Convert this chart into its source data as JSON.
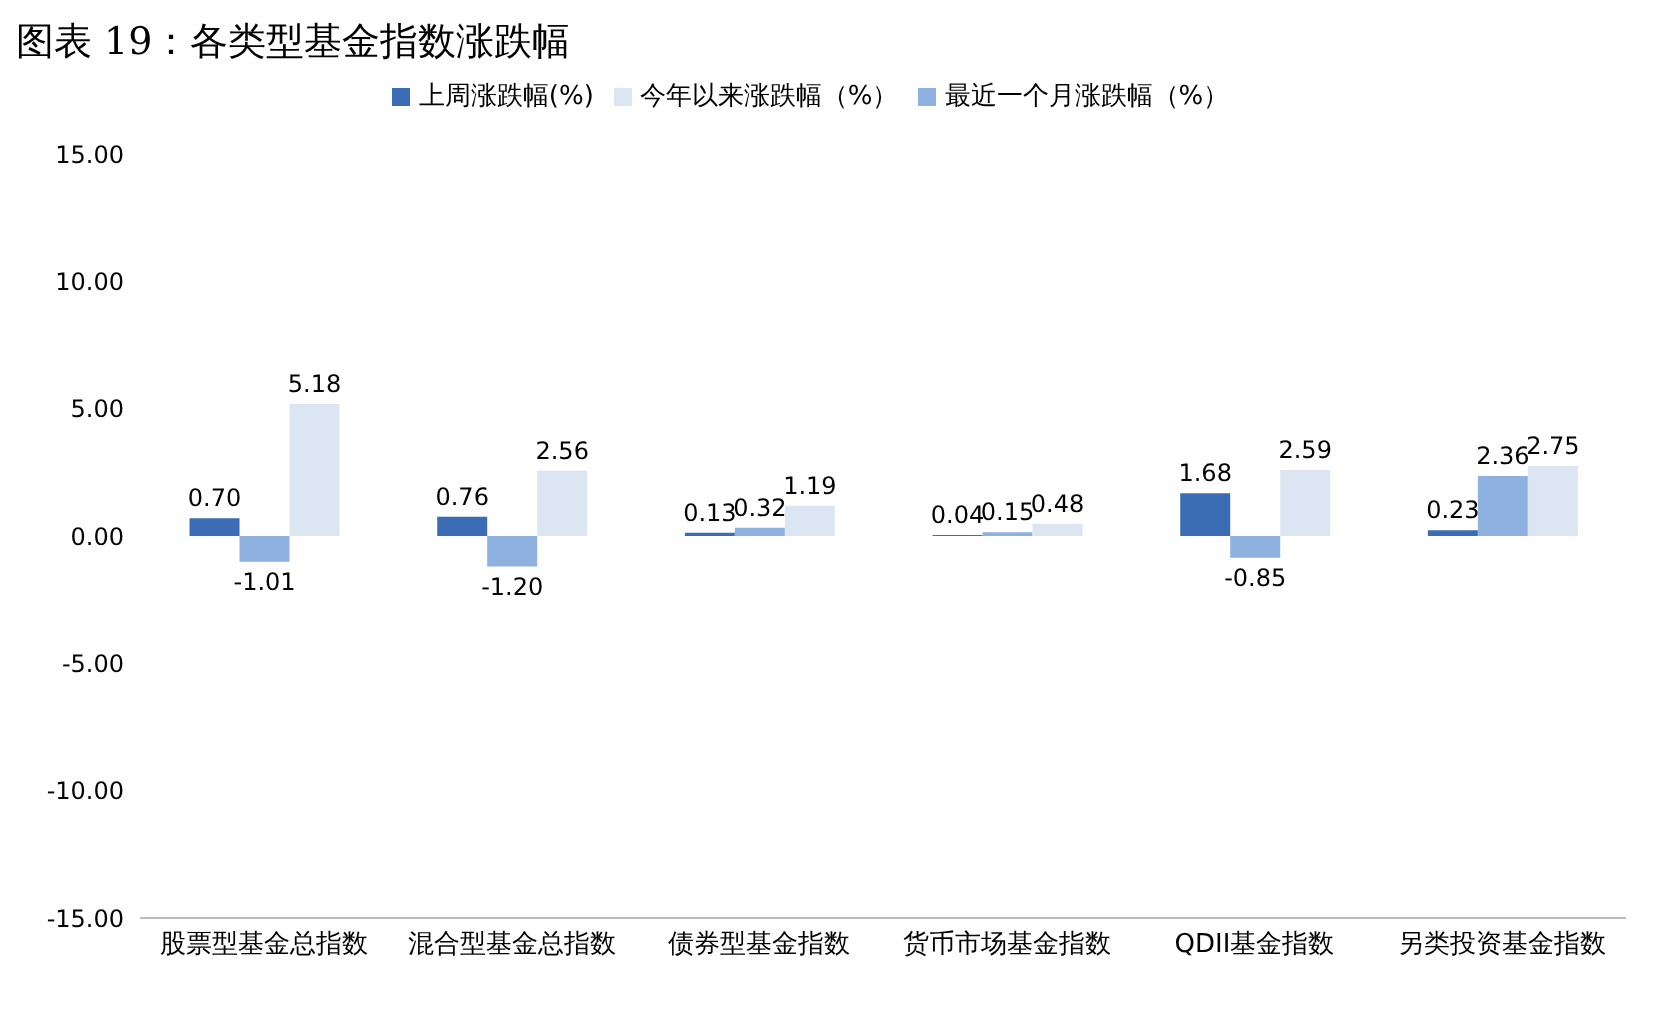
{
  "chart_data": {
    "type": "bar",
    "title": "图表 19：各类型基金指数涨跌幅",
    "categories": [
      "股票型基金总指数",
      "混合型基金总指数",
      "债券型基金指数",
      "货币市场基金指数",
      "QDII基金指数",
      "另类投资基金指数"
    ],
    "series": [
      {
        "name": "上周涨跌幅(%)",
        "color": "#3b6db5",
        "values": [
          0.7,
          0.76,
          0.13,
          0.04,
          1.68,
          0.23
        ],
        "value_labels": [
          "0.70",
          "0.76",
          "0.13",
          "0.04",
          "1.68",
          "0.23"
        ]
      },
      {
        "name": "最近一个月涨跌幅（%）",
        "color": "#8eb1e0",
        "values": [
          -1.01,
          -1.2,
          0.32,
          0.15,
          -0.85,
          2.36
        ],
        "value_labels": [
          "-1.01",
          "-1.20",
          "0.32",
          "0.15",
          "-0.85",
          "2.36"
        ]
      },
      {
        "name": "今年以来涨跌幅（%）",
        "color": "#dce5f2",
        "values": [
          5.18,
          2.56,
          1.19,
          0.48,
          2.59,
          2.75
        ],
        "value_labels": [
          "5.18",
          "2.56",
          "1.19",
          "0.48",
          "2.59",
          "2.75"
        ]
      }
    ],
    "ylim": [
      -15,
      15
    ],
    "yticks": [
      {
        "value": -15,
        "label": "-15.00"
      },
      {
        "value": -10,
        "label": "-10.00"
      },
      {
        "value": -5,
        "label": "-5.00"
      },
      {
        "value": 0,
        "label": "0.00"
      },
      {
        "value": 5,
        "label": "5.00"
      },
      {
        "value": 10,
        "label": "10.00"
      },
      {
        "value": 15,
        "label": "15.00"
      }
    ],
    "legend": "top"
  }
}
